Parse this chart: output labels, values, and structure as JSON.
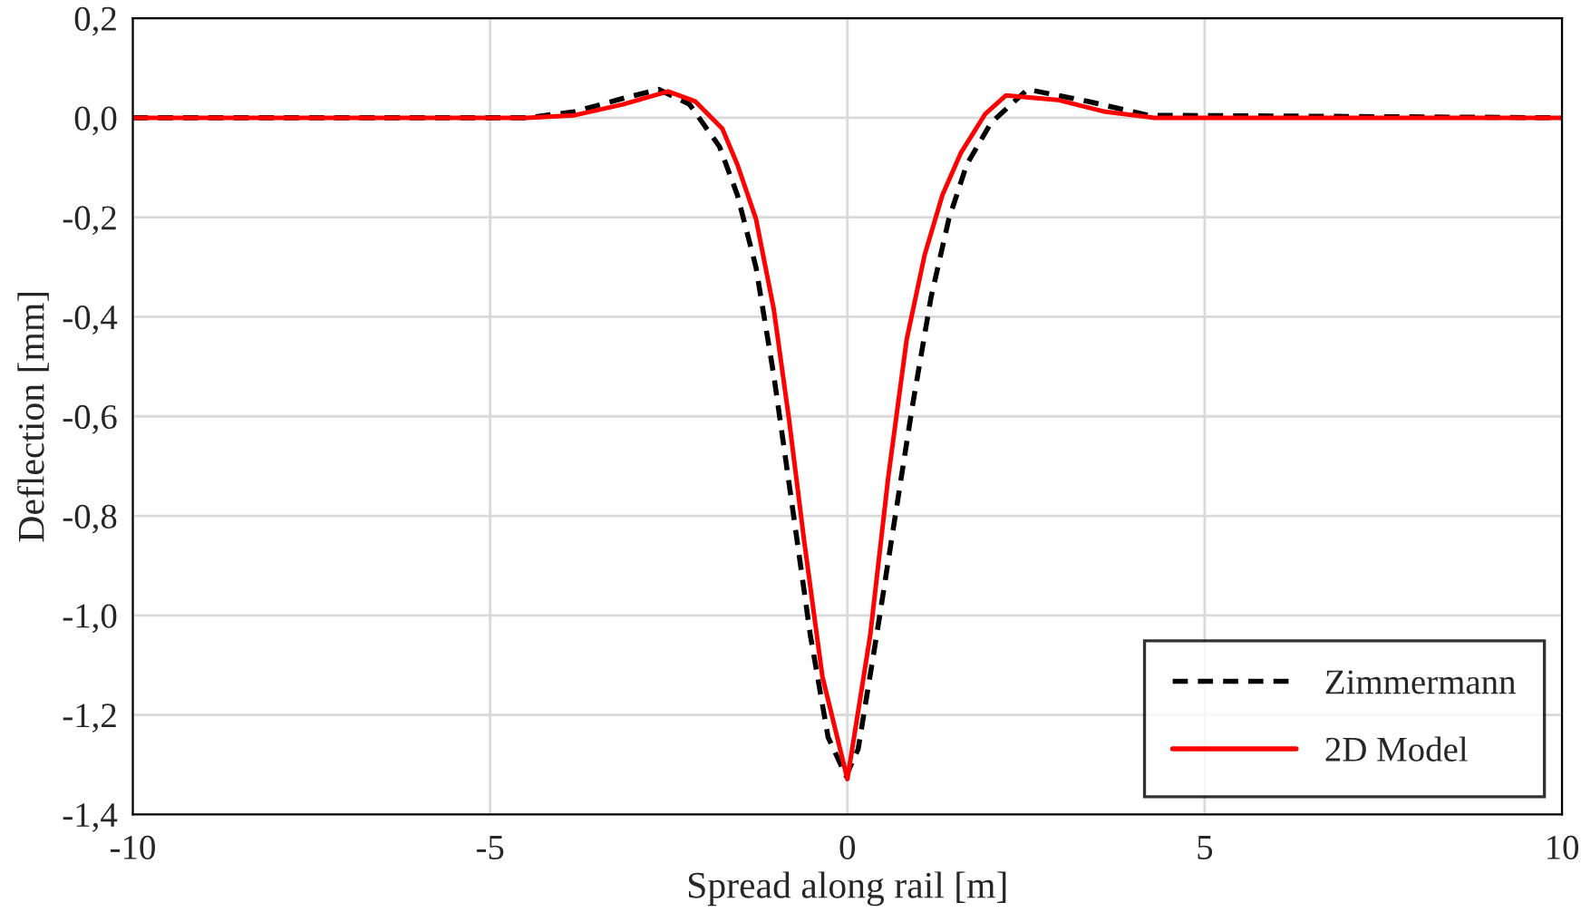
{
  "chart_data": {
    "type": "line",
    "xlabel": "Spread along rail [m]",
    "ylabel": "Deflection [mm]",
    "xlim": [
      -10,
      10
    ],
    "xticks": [
      -10,
      -5,
      0,
      5,
      10
    ],
    "ylim": [
      -1.4,
      0.2
    ],
    "yticks": [
      {
        "value": 0.2,
        "label": "0,2"
      },
      {
        "value": 0.0,
        "label": "0,0"
      },
      {
        "value": -0.2,
        "label": "-0,2"
      },
      {
        "value": -0.4,
        "label": "-0,4"
      },
      {
        "value": -0.6,
        "label": "-0,6"
      },
      {
        "value": -0.8,
        "label": "-0,8"
      },
      {
        "value": -1.0,
        "label": "-1,0"
      },
      {
        "value": -1.2,
        "label": "-1,2"
      },
      {
        "value": -1.4,
        "label": "-1,4"
      }
    ],
    "grid": true,
    "legend": "bottom right",
    "series": [
      {
        "name": "Zimmermann",
        "color": "#000000",
        "line_style": "dashed",
        "x": [
          -10,
          -4.49,
          -3.82,
          -3.14,
          -2.64,
          -2.21,
          -1.79,
          -1.54,
          -1.28,
          -1.03,
          -0.78,
          -0.52,
          -0.27,
          -0.02,
          0.15,
          0.41,
          0.66,
          0.91,
          1.17,
          1.42,
          1.67,
          2.01,
          2.52,
          3.36,
          4.21,
          10
        ],
        "values": [
          0,
          0,
          0.012,
          0.039,
          0.057,
          0.027,
          -0.058,
          -0.155,
          -0.3,
          -0.518,
          -0.772,
          -1.039,
          -1.245,
          -1.323,
          -1.269,
          -1.039,
          -0.809,
          -0.579,
          -0.361,
          -0.203,
          -0.094,
          -0.01,
          0.057,
          0.033,
          0.005,
          0
        ]
      },
      {
        "name": "2D Model",
        "color": "#ff0000",
        "line_style": "solid",
        "x": [
          -10,
          -4.49,
          -3.82,
          -3.14,
          -2.51,
          -2.13,
          -1.75,
          -1.54,
          -1.28,
          -1.03,
          -0.82,
          -0.61,
          -0.35,
          0,
          0.32,
          0.57,
          0.83,
          1.08,
          1.33,
          1.59,
          1.93,
          2.22,
          2.94,
          3.61,
          4.29,
          10
        ],
        "values": [
          0,
          0,
          0.005,
          0.027,
          0.053,
          0.033,
          -0.022,
          -0.094,
          -0.203,
          -0.385,
          -0.603,
          -0.845,
          -1.123,
          -1.329,
          -1.039,
          -0.724,
          -0.445,
          -0.276,
          -0.155,
          -0.07,
          0.008,
          0.045,
          0.036,
          0.012,
          0,
          0
        ]
      }
    ]
  }
}
